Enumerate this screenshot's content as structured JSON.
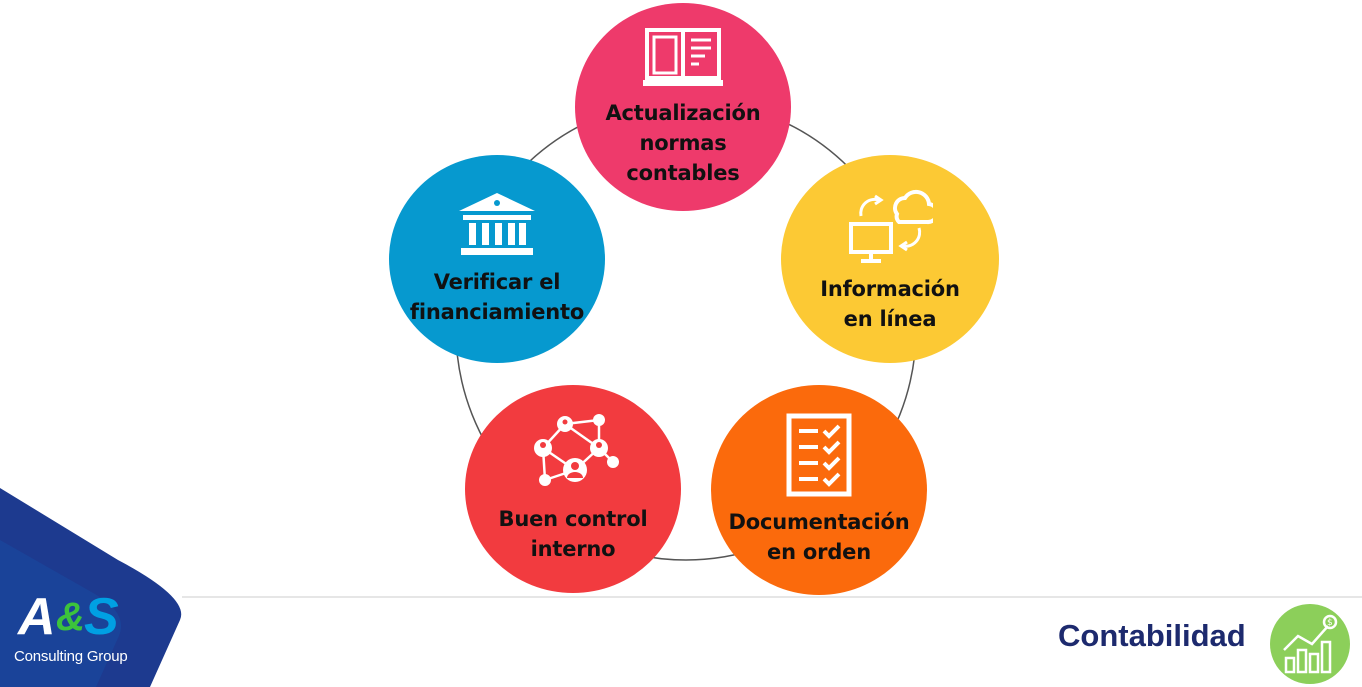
{
  "diagram": {
    "nodes": [
      {
        "label": "Actualización\nnormas\ncontables",
        "color": "#ee3a6b",
        "icon": "book-icon"
      },
      {
        "label": "Información\nen línea",
        "color": "#fcc934",
        "icon": "cloud-sync-icon"
      },
      {
        "label": "Documentación\nen orden",
        "color": "#fb6a0c",
        "icon": "checklist-icon"
      },
      {
        "label": "Buen control\ninterno",
        "color": "#f23b3f",
        "icon": "network-people-icon"
      },
      {
        "label": "Verificar el\nfinanciamiento",
        "color": "#0699cf",
        "icon": "bank-icon"
      }
    ],
    "ring_color": "#555555"
  },
  "footer": {
    "brand": {
      "logo_text": "A&S",
      "subtitle": "Consulting Group",
      "colors": [
        "#1d3a8f",
        "#00a0e3",
        "#3cc33c"
      ]
    },
    "section_title": "Contabilidad",
    "badge_icon": "growth-chart-icon",
    "badge_color": "#8ccf5a"
  }
}
